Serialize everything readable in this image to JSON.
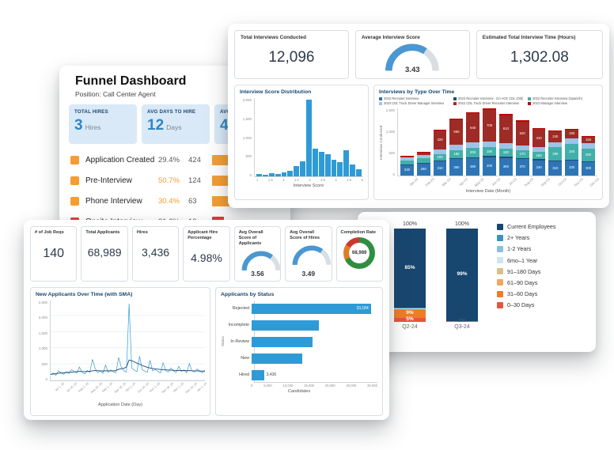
{
  "funnel_card": {
    "title": "Funnel Dashboard",
    "subtitle": "Position: Call Center Agent",
    "kpis": [
      {
        "label": "TOTAL HIRES",
        "value": "3",
        "unit": "Hires"
      },
      {
        "label": "AVG DAYS TO HIRE",
        "value": "12",
        "unit": "Days"
      },
      {
        "label": "AVG",
        "value": "4",
        "unit": ""
      }
    ],
    "rows": [
      {
        "icon_color": "#f59d33",
        "pct_color": "#5a5a5a"
      },
      {
        "icon_color": "#f59d33",
        "pct_color": "#f59d33"
      },
      {
        "icon_color": "#f59d33",
        "pct_color": "#f59d33"
      },
      {
        "icon_color": "#df3b3b",
        "pct_color": "#5a5a5a"
      }
    ]
  },
  "interviews_card": {
    "kpis": [
      {
        "label": "Total Interviews Conducted",
        "value": "12,096"
      },
      {
        "label": "Average Interview Score",
        "value": "3.43"
      },
      {
        "label": "Estimated Total Interview Time (Hours)",
        "value": "1,302.08"
      }
    ]
  },
  "applicants_card": {
    "kpis": [
      {
        "label": "# of Job Reqs",
        "value": "140"
      },
      {
        "label": "Total Applicants",
        "value": "68,989"
      },
      {
        "label": "Hires",
        "value": "3,436"
      },
      {
        "label": "Applicant Hire Percentage",
        "value": "4.98%"
      },
      {
        "label": "Avg Overall Score of Applicants",
        "value": "3.56"
      },
      {
        "label": "Avg Overall Score of Hires",
        "value": "3.49"
      },
      {
        "label": "Completion Rate",
        "value": "68,989"
      }
    ]
  },
  "chart_data": [
    {
      "id": "hiring-funnel",
      "type": "bar",
      "orientation": "horizontal",
      "title": "Funnel Dashboard",
      "categories": [
        "Application Created",
        "Pre-Interview",
        "Phone Interview",
        "Onsite Interview"
      ],
      "values": [
        424,
        124,
        63,
        19
      ],
      "percentages": [
        "29.4%",
        "50.7%",
        "30.4%",
        "21.3%"
      ],
      "colors": [
        "#f59d33",
        "#f59d33",
        "#f59d33",
        "#df3b3b"
      ]
    },
    {
      "id": "avg-interview-score",
      "type": "gauge",
      "title": "Average Interview Score",
      "value": "3.43",
      "min": 0,
      "max": 5,
      "color": "#4a97d2",
      "track": "#d9dee3"
    },
    {
      "id": "score-distribution",
      "type": "bar",
      "title": "Interview Score Distribution",
      "xlabel": "Interview Score",
      "color": "#2e9bd6",
      "x_start": 1,
      "x_step": 0.25,
      "values": [
        60,
        40,
        90,
        70,
        110,
        140,
        260,
        380,
        1950,
        700,
        620,
        560,
        420,
        360,
        660,
        300,
        180
      ],
      "ylim": [
        0,
        2000
      ],
      "yticks": [
        "2,000",
        "1,500",
        "1,000",
        "500",
        "0"
      ],
      "xticks": [
        "1",
        "1.5",
        "2",
        "2.5",
        "3",
        "3.5",
        "4",
        "4.5",
        "5"
      ]
    },
    {
      "id": "interviews-by-type",
      "type": "bar",
      "stacked": true,
      "title": "Interviews by Type Over Time",
      "xlabel": "Interview Date (Month)",
      "ylabel": "Interviews Conducted",
      "categories": [
        "Jan-23",
        "Feb-23",
        "Mar-23",
        "Apr-23",
        "May-23",
        "Jun-23",
        "Jul-23",
        "Aug-23",
        "Sep-23",
        "Oct-23",
        "Nov-23",
        "Dec-23"
      ],
      "ylim": [
        0,
        1500
      ],
      "yticks": [
        "1,500",
        "1,000",
        "500",
        "0"
      ],
      "series": [
        {
          "name": "2022 Recruiter Interview",
          "color": "#2e75b6",
          "values": [
            230,
            260,
            310,
            360,
            380,
            400,
            390,
            370,
            340,
            310,
            330,
            300
          ]
        },
        {
          "name": "2022 Recruiter Interview - GA ACE CDL (Old)",
          "color": "#1f4e79",
          "values": [
            15,
            15,
            20,
            25,
            30,
            30,
            25,
            20,
            20,
            20,
            20,
            20
          ]
        },
        {
          "name": "2022 Recruiter Interview (Spanish)",
          "color": "#41b0aa",
          "values": [
            90,
            110,
            150,
            180,
            200,
            190,
            180,
            170,
            160,
            290,
            340,
            280
          ]
        },
        {
          "name": "2023 CDL Truck Driver Manager Interview",
          "color": "#9dc3e6",
          "values": [
            60,
            70,
            90,
            110,
            120,
            130,
            120,
            110,
            100,
            120,
            130,
            110
          ]
        },
        {
          "name": "2022 CDL Truck Driver Recruiter Interview",
          "color": "#9e2b25",
          "values": [
            40,
            60,
            420,
            560,
            640,
            700,
            610,
            520,
            410,
            240,
            190,
            150
          ]
        },
        {
          "name": "2022 Manager Interview",
          "color": "#c00000",
          "values": [
            10,
            15,
            20,
            30,
            30,
            40,
            30,
            30,
            25,
            20,
            20,
            20
          ]
        }
      ]
    },
    {
      "id": "avg-score-applicants",
      "type": "gauge",
      "title": "Avg Overall Score of Applicants",
      "value": "3.56",
      "min": 0,
      "max": 5,
      "color": "#4a97d2",
      "track": "#d9dee3"
    },
    {
      "id": "avg-score-hires",
      "type": "gauge",
      "title": "Avg Overall Score of Hires",
      "value": "3.49",
      "min": 0,
      "max": 5,
      "color": "#4a97d2",
      "track": "#d9dee3"
    },
    {
      "id": "completion-rate",
      "type": "pie",
      "title": "Completion Rate",
      "center_label": "68,989",
      "segments": [
        {
          "value": 68,
          "color": "#2f8f3f"
        },
        {
          "value": 16,
          "color": "#e07c26"
        },
        {
          "value": 16,
          "color": "#c9392e"
        }
      ]
    },
    {
      "id": "new-applicants",
      "type": "line",
      "title": "New Applicants Over Time (with SMA)",
      "xlabel": "Application Date (Day)",
      "ylim": [
        0,
        2500
      ],
      "yticks": [
        "2,500",
        "2,000",
        "1,500",
        "1,000",
        "500",
        "0"
      ],
      "xticks": [
        "Jul 1, 23",
        "Jul 16, 23",
        "Aug 1, 23",
        "Aug 16, 23",
        "Sep 1, 23",
        "Sep 16, 23",
        "Oct 1, 23",
        "Oct 16, 23",
        "Nov 1, 23",
        "Nov 16, 23",
        "Dec 1, 23",
        "Dec 16, 23",
        "Jan 1, 24"
      ],
      "series": [
        {
          "name": "New Applicants",
          "color": "#2e9bd6",
          "width": 0.7,
          "values": [
            180,
            230,
            160,
            300,
            240,
            190,
            270,
            210,
            340,
            280,
            230,
            420,
            260,
            200,
            310,
            250,
            660,
            380,
            240,
            300,
            220,
            480,
            260,
            330,
            270,
            240,
            720,
            420,
            300,
            260,
            2400,
            390,
            320,
            280,
            760,
            340,
            290,
            250,
            630,
            300,
            340,
            280,
            230,
            550,
            310,
            260,
            390,
            300,
            250,
            440,
            280,
            330,
            240,
            530,
            300,
            260,
            360,
            290,
            240,
            320
          ]
        },
        {
          "name": "SMA",
          "color": "#17466f",
          "width": 0.9,
          "values": [
            190,
            200,
            210,
            222,
            232,
            240,
            248,
            254,
            262,
            268,
            274,
            282,
            278,
            274,
            280,
            286,
            300,
            308,
            304,
            298,
            294,
            302,
            300,
            300,
            300,
            308,
            348,
            368,
            380,
            418,
            640,
            616,
            580,
            540,
            508,
            470,
            438,
            410,
            390,
            372,
            360,
            350,
            342,
            336,
            330,
            326,
            320,
            316,
            310,
            314,
            308,
            306,
            304,
            306,
            302,
            300,
            298,
            295,
            292,
            290
          ]
        }
      ]
    },
    {
      "id": "applicants-by-status",
      "type": "bar",
      "orientation": "horizontal",
      "title": "Applicants by Status",
      "xlabel": "Candidates",
      "ylabel": "Status",
      "color": "#2e9bd6",
      "categories": [
        "Rejected",
        "Incomplete",
        "In Review",
        "New",
        "Hired"
      ],
      "values": [
        33184,
        18730,
        16842,
        14105,
        3436
      ],
      "value_labels": [
        "33,184",
        "",
        "",
        "",
        "3,436"
      ],
      "xlim": [
        0,
        35000
      ],
      "xticks": [
        "0",
        "5,000",
        "10,000",
        "15,000",
        "20,000",
        "25,000",
        "30,000"
      ]
    },
    {
      "id": "employee-tenure-mix",
      "type": "bar",
      "stacked": true,
      "percent": true,
      "categories": [
        "Q2-24",
        "Q3-24"
      ],
      "bar_totals": [
        "100%",
        "100%"
      ],
      "series": [
        {
          "name": "Current Employees",
          "color": "#17466f",
          "values": [
            85,
            99
          ],
          "labels": [
            "85%",
            "99%"
          ]
        },
        {
          "name": "2+ Years",
          "color": "#3a93c2",
          "values": [
            0.5,
            0
          ],
          "labels": [
            "",
            ""
          ]
        },
        {
          "name": "1-2 Years",
          "color": "#86c2e0",
          "values": [
            0.5,
            0
          ],
          "labels": [
            "",
            ""
          ]
        },
        {
          "name": "6mo–1 Year",
          "color": "#cfe4f0",
          "values": [
            0.5,
            0
          ],
          "labels": [
            "",
            ""
          ]
        },
        {
          "name": "91–180 Days",
          "color": "#d9c089",
          "values": [
            0,
            0
          ],
          "labels": [
            "",
            ""
          ]
        },
        {
          "name": "61–90 Days",
          "color": "#f2a65e",
          "values": [
            0,
            0
          ],
          "labels": [
            "",
            ""
          ]
        },
        {
          "name": "31–60 Days",
          "color": "#ef7d28",
          "values": [
            9,
            0
          ],
          "labels": [
            "9%",
            ""
          ]
        },
        {
          "name": "0–30 Days",
          "color": "#e8543f",
          "values": [
            4.5,
            1
          ],
          "labels": [
            "5%",
            "1%"
          ]
        }
      ]
    }
  ]
}
